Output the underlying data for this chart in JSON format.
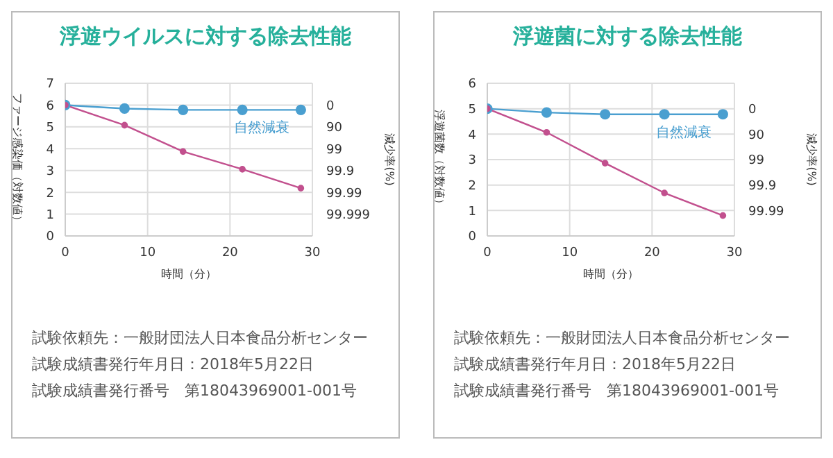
{
  "chart_data": [
    {
      "type": "line",
      "title": "浮遊ウイルスに対する除去性能",
      "xlabel": "時間（分）",
      "ylabel": "ファージ感染価（対数値）",
      "y2label": "減少率(%)",
      "x": [
        0,
        7.2,
        14.3,
        21.5,
        28.6
      ],
      "xlim": [
        0,
        30
      ],
      "xticks": [
        0,
        10,
        20,
        30
      ],
      "ylim": [
        0,
        7
      ],
      "yticks": [
        0,
        1,
        2,
        3,
        4,
        5,
        6,
        7
      ],
      "grid": true,
      "marker": "circle",
      "line_style": "solid",
      "series": [
        {
          "name": "自然減衰",
          "color": "#4a9fd0",
          "values": [
            6,
            5.84,
            5.78,
            5.78,
            5.78
          ]
        },
        {
          "color": "#c2508e",
          "values": [
            6,
            5.08,
            3.87,
            3.06,
            2.19
          ]
        }
      ],
      "annotations": [
        "0",
        "90",
        "99",
        "99.9",
        "99.99",
        "99.999",
        "試験依頼先：一般財団法人日本食品分析センター",
        "試験成績書発行年月日：2018年5月22日",
        "試験成績書発行番号　第18043969001-001号"
      ]
    },
    {
      "type": "line",
      "title": "浮遊菌に対する除去性能",
      "xlabel": "時間（分）",
      "ylabel": "浮遊菌数（対数値）",
      "y2label": "減少率(%)",
      "x": [
        0,
        7.2,
        14.3,
        21.5,
        28.6
      ],
      "xlim": [
        0,
        30
      ],
      "xticks": [
        0,
        10,
        20,
        30
      ],
      "ylim": [
        0,
        6
      ],
      "yticks": [
        0,
        1,
        2,
        3,
        4,
        5,
        6
      ],
      "grid": true,
      "marker": "circle",
      "line_style": "solid",
      "series": [
        {
          "name": "自然減衰",
          "color": "#4a9fd0",
          "values": [
            5,
            4.85,
            4.78,
            4.78,
            4.78
          ]
        },
        {
          "color": "#c2508e",
          "values": [
            5,
            4.07,
            2.86,
            1.69,
            0.8
          ]
        }
      ],
      "annotations": [
        "0",
        "90",
        "99",
        "99.9",
        "99.99",
        "試験依頼先：一般財団法人日本食品分析センター",
        "試験成績書発行年月日：2018年5月22日",
        "試験成績書発行番号　第18043969001-001号"
      ]
    }
  ]
}
